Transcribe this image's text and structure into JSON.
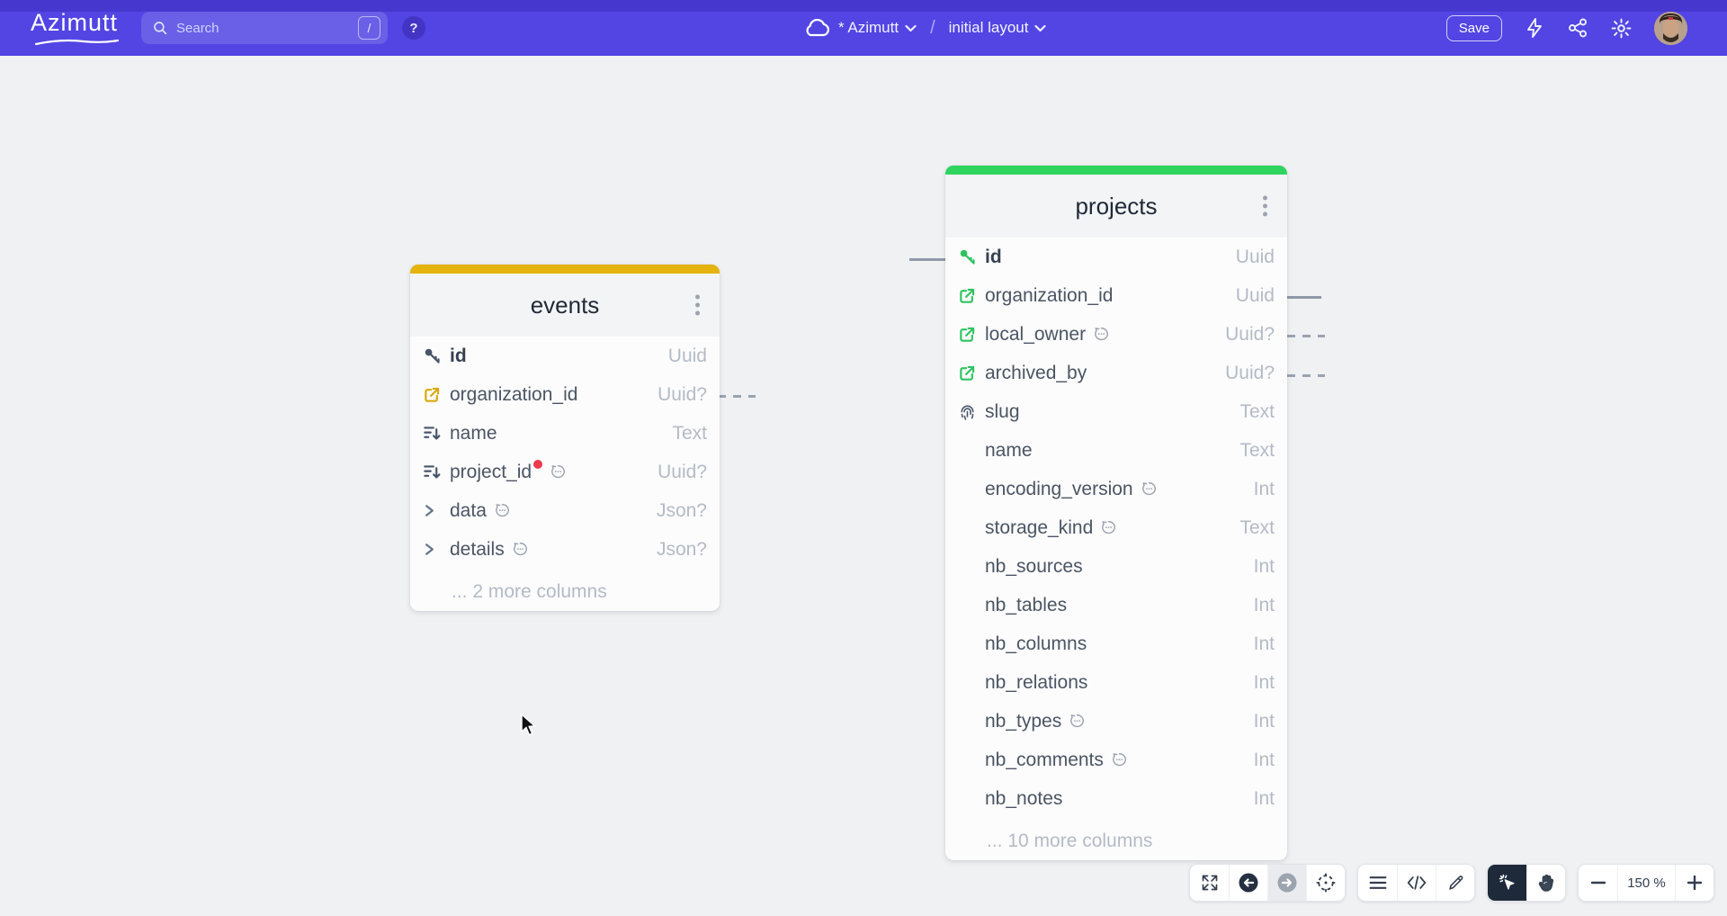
{
  "topbar": {
    "logo": "Azimutt",
    "search": {
      "placeholder": "Search",
      "shortcut": "/"
    },
    "help_label": "?",
    "breadcrumb": {
      "project": "* Azimutt",
      "separator": "/",
      "layout": "initial layout"
    },
    "save_label": "Save"
  },
  "canvas": {
    "tables": [
      {
        "name": "events",
        "accent": "#e4b30c",
        "more": "... 2 more columns",
        "columns": [
          {
            "name": "id",
            "type": "Uuid",
            "icon": "key",
            "icon_color": "#475569",
            "bold": true
          },
          {
            "name": "organization_id",
            "type": "Uuid?",
            "icon": "fk",
            "icon_color": "#d9a909"
          },
          {
            "name": "name",
            "type": "Text",
            "icon": "index",
            "icon_color": "#475569"
          },
          {
            "name": "project_id",
            "type": "Uuid?",
            "icon": "index",
            "icon_color": "#475569",
            "badges": [
              "red-dot",
              "comment"
            ]
          },
          {
            "name": "data",
            "type": "Json?",
            "icon": "nested",
            "icon_color": "#64748b",
            "badges": [
              "comment"
            ]
          },
          {
            "name": "details",
            "type": "Json?",
            "icon": "nested",
            "icon_color": "#64748b",
            "badges": [
              "comment"
            ]
          }
        ]
      },
      {
        "name": "projects",
        "accent": "#2fd45f",
        "more": "... 10 more columns",
        "columns": [
          {
            "name": "id",
            "type": "Uuid",
            "icon": "key",
            "icon_color": "#2fc360",
            "bold": true
          },
          {
            "name": "organization_id",
            "type": "Uuid",
            "icon": "fk",
            "icon_color": "#2fc360"
          },
          {
            "name": "local_owner",
            "type": "Uuid?",
            "icon": "fk",
            "icon_color": "#2fc360",
            "badges": [
              "comment"
            ]
          },
          {
            "name": "archived_by",
            "type": "Uuid?",
            "icon": "fk",
            "icon_color": "#2fc360"
          },
          {
            "name": "slug",
            "type": "Text",
            "icon": "unique",
            "icon_color": "#475569"
          },
          {
            "name": "name",
            "type": "Text"
          },
          {
            "name": "encoding_version",
            "type": "Int",
            "badges": [
              "comment"
            ]
          },
          {
            "name": "storage_kind",
            "type": "Text",
            "badges": [
              "comment"
            ]
          },
          {
            "name": "nb_sources",
            "type": "Int"
          },
          {
            "name": "nb_tables",
            "type": "Int"
          },
          {
            "name": "nb_columns",
            "type": "Int"
          },
          {
            "name": "nb_relations",
            "type": "Int"
          },
          {
            "name": "nb_types",
            "type": "Int",
            "badges": [
              "comment"
            ]
          },
          {
            "name": "nb_comments",
            "type": "Int",
            "badges": [
              "comment"
            ]
          },
          {
            "name": "nb_notes",
            "type": "Int"
          }
        ]
      }
    ],
    "relations": [
      {
        "table": "projects",
        "column": "id",
        "side": "left",
        "style": "solid"
      },
      {
        "table": "projects",
        "column": "organization_id",
        "side": "right",
        "style": "solid"
      },
      {
        "table": "projects",
        "column": "local_owner",
        "side": "right",
        "style": "dashed"
      },
      {
        "table": "projects",
        "column": "archived_by",
        "side": "right",
        "style": "dashed"
      },
      {
        "table": "events",
        "column": "organization_id",
        "side": "right",
        "style": "dashed"
      }
    ]
  },
  "toolbar": {
    "buttons": [
      {
        "name": "fullscreen",
        "state": "default"
      },
      {
        "name": "undo",
        "state": "default"
      },
      {
        "name": "redo",
        "state": "disabled"
      },
      {
        "name": "fit-to-screen",
        "state": "default"
      },
      {
        "name": "table-list",
        "state": "default"
      },
      {
        "name": "source-code",
        "state": "default"
      },
      {
        "name": "edit",
        "state": "default"
      },
      {
        "name": "select-tool",
        "state": "selected"
      },
      {
        "name": "pan-tool",
        "state": "default"
      },
      {
        "name": "zoom-out",
        "state": "default"
      },
      {
        "name": "zoom-in",
        "state": "default"
      }
    ],
    "zoom_label": "150 %"
  }
}
